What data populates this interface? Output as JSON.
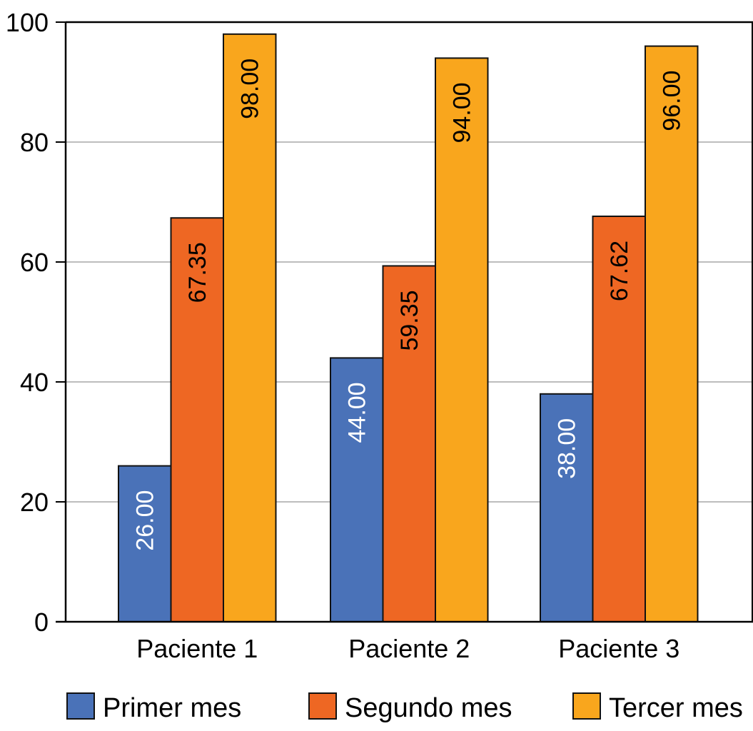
{
  "chart_data": {
    "type": "bar",
    "title": "",
    "xlabel": "",
    "ylabel": "",
    "ylim": [
      0,
      100
    ],
    "yticks": [
      "0",
      "20",
      "40",
      "60",
      "80",
      "100"
    ],
    "grid": true,
    "legend_position": "bottom",
    "categories": [
      "Paciente 1",
      "Paciente 2",
      "Paciente 3"
    ],
    "series": [
      {
        "name": "Primer mes",
        "color": "#4a72b8",
        "label_color": "#ffffff",
        "values": [
          26.0,
          44.0,
          38.0
        ],
        "labels": [
          "26.00",
          "44.00",
          "38.00"
        ]
      },
      {
        "name": "Segundo mes",
        "color": "#ee6723",
        "label_color": "#000000",
        "values": [
          67.35,
          59.35,
          67.62
        ],
        "labels": [
          "67.35",
          "59.35",
          "67.62"
        ]
      },
      {
        "name": "Tercer mes",
        "color": "#f9a61d",
        "label_color": "#000000",
        "values": [
          98.0,
          94.0,
          96.0
        ],
        "labels": [
          "98.00",
          "94.00",
          "96.00"
        ]
      }
    ]
  }
}
